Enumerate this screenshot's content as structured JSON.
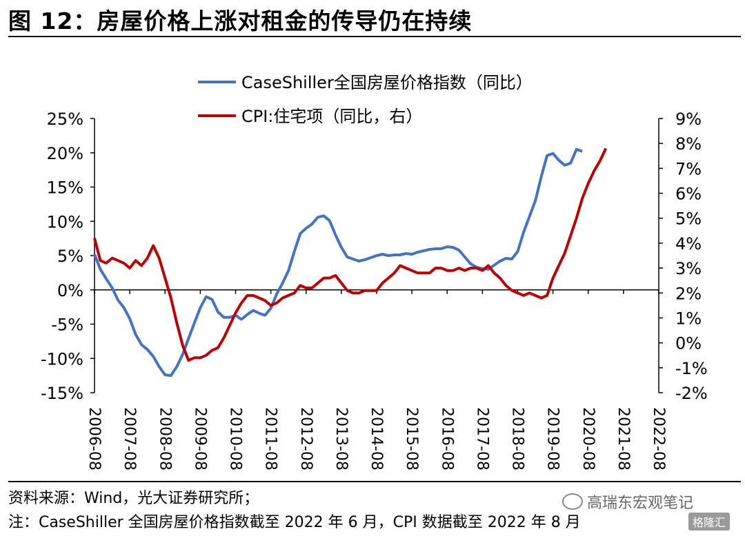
{
  "title": "图 12：房屋价格上涨对租金的传导仍在持续",
  "source": "资料来源：Wind，光大证券研究所；",
  "note": "注：CaseShiller 全国房屋价格指数截至 2022 年 6 月，CPI 数据截至 2022 年 8 月",
  "watermark": "高瑞东宏观笔记",
  "watermark2": "格隆汇",
  "colors": {
    "series1": "#4472C4",
    "series2": "#C00000"
  },
  "chart_data": {
    "type": "line",
    "x_tick_labels": [
      "2006-08",
      "2007-08",
      "2008-08",
      "2009-08",
      "2010-08",
      "2011-08",
      "2012-08",
      "2013-08",
      "2014-08",
      "2015-08",
      "2016-08",
      "2017-08",
      "2018-08",
      "2019-08",
      "2020-08",
      "2021-08",
      "2022-08"
    ],
    "left_axis": {
      "ticks": [
        "25%",
        "20%",
        "15%",
        "10%",
        "5%",
        "0%",
        "-5%",
        "-10%",
        "-15%"
      ],
      "ylim": [
        -15,
        25
      ],
      "unit": "%"
    },
    "right_axis": {
      "ticks": [
        "9%",
        "8%",
        "7%",
        "6%",
        "5%",
        "4%",
        "3%",
        "2%",
        "1%",
        "0%",
        "-1%",
        "-2%"
      ],
      "ylim": [
        -2,
        9
      ],
      "unit": "%"
    },
    "legend_position": "top-center",
    "series": [
      {
        "name": "CaseShiller全国房屋价格指数（同比）",
        "axis": "left",
        "color": "#4472C4",
        "points": [
          [
            "2006-08",
            5.2
          ],
          [
            "2006-10",
            3.0
          ],
          [
            "2006-12",
            1.6
          ],
          [
            "2007-02",
            0.3
          ],
          [
            "2007-04",
            -1.5
          ],
          [
            "2007-06",
            -2.6
          ],
          [
            "2007-08",
            -4.2
          ],
          [
            "2007-10",
            -6.5
          ],
          [
            "2007-12",
            -8.0
          ],
          [
            "2008-02",
            -8.7
          ],
          [
            "2008-04",
            -9.7
          ],
          [
            "2008-06",
            -11.2
          ],
          [
            "2008-08",
            -12.4
          ],
          [
            "2008-10",
            -12.5
          ],
          [
            "2008-12",
            -11.2
          ],
          [
            "2009-02",
            -9.4
          ],
          [
            "2009-04",
            -7.1
          ],
          [
            "2009-06",
            -4.8
          ],
          [
            "2009-08",
            -2.6
          ],
          [
            "2009-10",
            -1.0
          ],
          [
            "2009-12",
            -1.4
          ],
          [
            "2010-02",
            -3.2
          ],
          [
            "2010-04",
            -4.0
          ],
          [
            "2010-06",
            -4.0
          ],
          [
            "2010-08",
            -3.7
          ],
          [
            "2010-10",
            -4.3
          ],
          [
            "2010-12",
            -3.6
          ],
          [
            "2011-02",
            -3.0
          ],
          [
            "2011-04",
            -3.4
          ],
          [
            "2011-06",
            -3.7
          ],
          [
            "2011-08",
            -2.7
          ],
          [
            "2011-10",
            -0.6
          ],
          [
            "2011-12",
            1.0
          ],
          [
            "2012-02",
            2.8
          ],
          [
            "2012-04",
            5.6
          ],
          [
            "2012-06",
            8.2
          ],
          [
            "2012-08",
            9.0
          ],
          [
            "2012-10",
            9.6
          ],
          [
            "2012-12",
            10.6
          ],
          [
            "2013-02",
            10.8
          ],
          [
            "2013-04",
            10.1
          ],
          [
            "2013-06",
            8.0
          ],
          [
            "2013-08",
            6.2
          ],
          [
            "2013-10",
            4.8
          ],
          [
            "2013-12",
            4.5
          ],
          [
            "2014-02",
            4.2
          ],
          [
            "2014-04",
            4.4
          ],
          [
            "2014-06",
            4.7
          ],
          [
            "2014-08",
            5.0
          ],
          [
            "2014-10",
            5.2
          ],
          [
            "2014-12",
            5.0
          ],
          [
            "2015-02",
            5.1
          ],
          [
            "2015-04",
            5.1
          ],
          [
            "2015-06",
            5.3
          ],
          [
            "2015-08",
            5.2
          ],
          [
            "2015-10",
            5.5
          ],
          [
            "2015-12",
            5.7
          ],
          [
            "2016-02",
            5.9
          ],
          [
            "2016-04",
            6.0
          ],
          [
            "2016-06",
            6.0
          ],
          [
            "2016-08",
            6.3
          ],
          [
            "2016-10",
            6.2
          ],
          [
            "2016-12",
            5.8
          ],
          [
            "2017-02",
            4.8
          ],
          [
            "2017-04",
            3.8
          ],
          [
            "2017-06",
            3.3
          ],
          [
            "2017-08",
            3.1
          ],
          [
            "2017-10",
            3.0
          ],
          [
            "2017-12",
            3.6
          ],
          [
            "2018-02",
            4.2
          ],
          [
            "2018-04",
            4.6
          ],
          [
            "2018-06",
            4.5
          ],
          [
            "2018-08",
            5.6
          ],
          [
            "2018-10",
            8.4
          ],
          [
            "2018-12",
            10.7
          ],
          [
            "2019-02",
            13.0
          ],
          [
            "2019-04",
            16.5
          ],
          [
            "2019-06",
            19.6
          ],
          [
            "2019-08",
            19.9
          ],
          [
            "2019-10",
            18.9
          ],
          [
            "2019-12",
            18.2
          ],
          [
            "2020-02",
            18.5
          ],
          [
            "2020-04",
            20.5
          ],
          [
            "2020-06",
            20.2
          ]
        ]
      },
      {
        "name": "CPI:住宅项（同比，右）",
        "axis": "right",
        "color": "#C00000",
        "points": [
          [
            "2006-08",
            4.2
          ],
          [
            "2006-10",
            3.3
          ],
          [
            "2006-12",
            3.2
          ],
          [
            "2007-02",
            3.4
          ],
          [
            "2007-04",
            3.3
          ],
          [
            "2007-06",
            3.2
          ],
          [
            "2007-08",
            3.0
          ],
          [
            "2007-10",
            3.3
          ],
          [
            "2007-12",
            3.1
          ],
          [
            "2008-02",
            3.4
          ],
          [
            "2008-04",
            3.9
          ],
          [
            "2008-06",
            3.4
          ],
          [
            "2008-08",
            2.6
          ],
          [
            "2008-10",
            1.8
          ],
          [
            "2008-12",
            0.8
          ],
          [
            "2009-02",
            -0.1
          ],
          [
            "2009-04",
            -0.7
          ],
          [
            "2009-06",
            -0.6
          ],
          [
            "2009-08",
            -0.6
          ],
          [
            "2009-10",
            -0.5
          ],
          [
            "2009-12",
            -0.3
          ],
          [
            "2010-02",
            -0.2
          ],
          [
            "2010-04",
            0.2
          ],
          [
            "2010-06",
            0.7
          ],
          [
            "2010-08",
            1.2
          ],
          [
            "2010-10",
            1.6
          ],
          [
            "2010-12",
            1.9
          ],
          [
            "2011-02",
            1.9
          ],
          [
            "2011-04",
            1.8
          ],
          [
            "2011-06",
            1.7
          ],
          [
            "2011-08",
            1.5
          ],
          [
            "2011-10",
            1.6
          ],
          [
            "2011-12",
            1.8
          ],
          [
            "2012-02",
            1.9
          ],
          [
            "2012-04",
            2.0
          ],
          [
            "2012-06",
            2.3
          ],
          [
            "2012-08",
            2.2
          ],
          [
            "2012-10",
            2.2
          ],
          [
            "2012-12",
            2.4
          ],
          [
            "2013-02",
            2.6
          ],
          [
            "2013-04",
            2.6
          ],
          [
            "2013-06",
            2.7
          ],
          [
            "2013-08",
            2.4
          ],
          [
            "2013-10",
            2.1
          ],
          [
            "2013-12",
            2.0
          ],
          [
            "2014-02",
            2.0
          ],
          [
            "2014-04",
            2.1
          ],
          [
            "2014-06",
            2.1
          ],
          [
            "2014-08",
            2.1
          ],
          [
            "2014-10",
            2.4
          ],
          [
            "2014-12",
            2.6
          ],
          [
            "2015-02",
            2.8
          ],
          [
            "2015-04",
            3.1
          ],
          [
            "2015-06",
            3.0
          ],
          [
            "2015-08",
            2.9
          ],
          [
            "2015-10",
            2.8
          ],
          [
            "2015-12",
            2.8
          ],
          [
            "2016-02",
            2.8
          ],
          [
            "2016-04",
            3.0
          ],
          [
            "2016-06",
            3.0
          ],
          [
            "2016-08",
            2.9
          ],
          [
            "2016-10",
            2.9
          ],
          [
            "2016-12",
            3.0
          ],
          [
            "2017-02",
            2.9
          ],
          [
            "2017-04",
            3.0
          ],
          [
            "2017-06",
            3.0
          ],
          [
            "2017-08",
            2.9
          ],
          [
            "2017-10",
            3.1
          ],
          [
            "2017-12",
            2.8
          ],
          [
            "2018-02",
            2.6
          ],
          [
            "2018-04",
            2.3
          ],
          [
            "2018-06",
            2.1
          ],
          [
            "2018-08",
            2.0
          ],
          [
            "2018-10",
            1.9
          ],
          [
            "2018-12",
            2.0
          ],
          [
            "2019-02",
            1.9
          ],
          [
            "2019-04",
            1.8
          ],
          [
            "2019-06",
            1.9
          ],
          [
            "2019-08",
            2.6
          ],
          [
            "2019-10",
            3.1
          ],
          [
            "2019-12",
            3.6
          ],
          [
            "2020-02",
            4.3
          ],
          [
            "2020-04",
            5.0
          ],
          [
            "2020-06",
            5.8
          ],
          [
            "2020-08",
            6.4
          ],
          [
            "2020-10",
            6.9
          ],
          [
            "2020-12",
            7.3
          ],
          [
            "2021-02",
            7.8
          ]
        ]
      }
    ]
  }
}
